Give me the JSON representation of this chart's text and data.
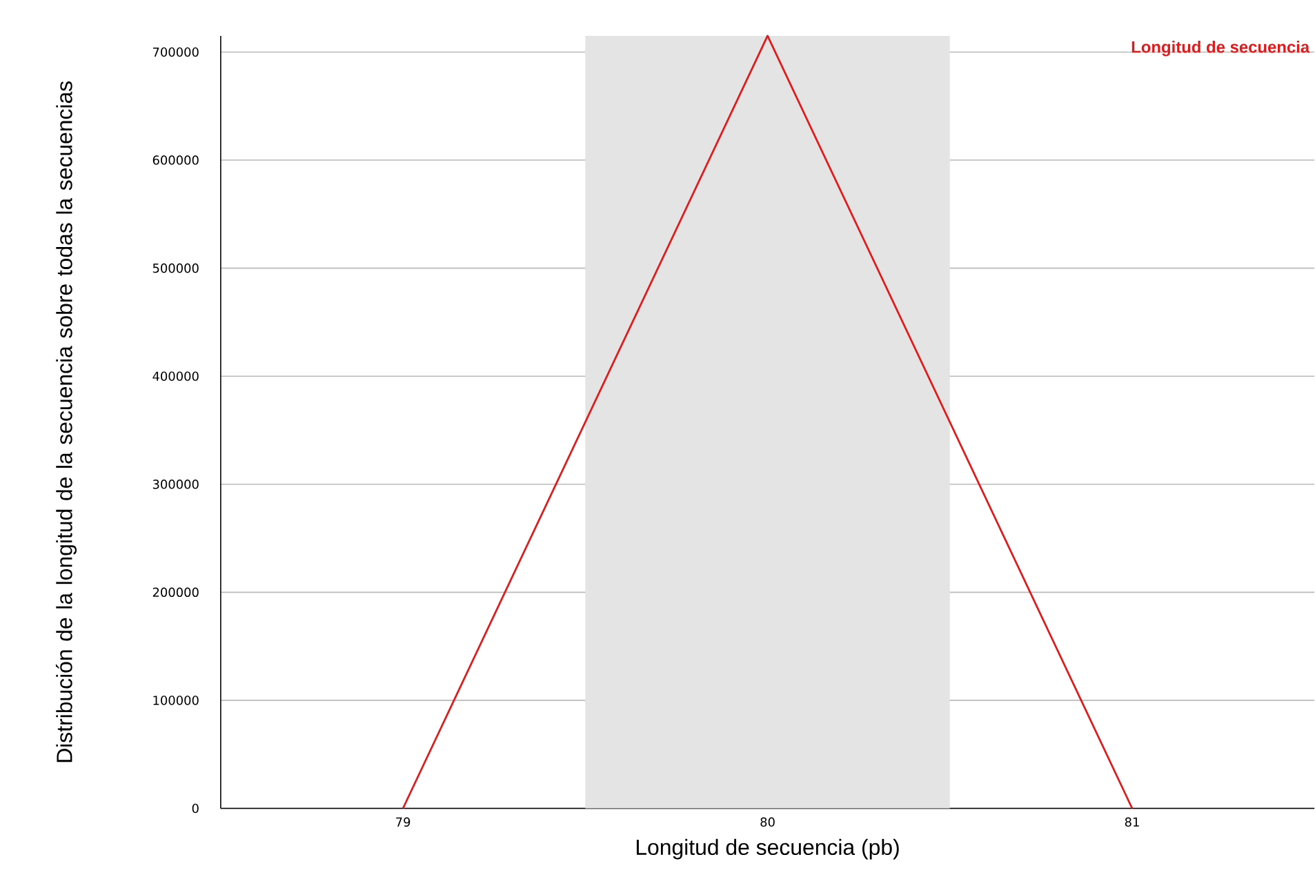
{
  "chart_data": {
    "type": "line",
    "xlabel": "Longitud de secuencia (pb)",
    "ylabel": "Distribución de la longitud de la secuencia sobre todas la secuencias",
    "x": [
      79,
      80,
      81
    ],
    "series": [
      {
        "name": "Longitud de secuencia",
        "color": "#e31a1c",
        "values": [
          0,
          715000,
          0
        ]
      }
    ],
    "xlim": [
      78.5,
      81.5
    ],
    "xticks": [
      79,
      80,
      81
    ],
    "ylim": [
      0,
      715000
    ],
    "yticks": [
      0,
      100000,
      200000,
      300000,
      400000,
      500000,
      600000,
      700000
    ],
    "bands": [
      {
        "axis": "x",
        "from": 79.5,
        "to": 80.5,
        "color": "#e4e4e4"
      }
    ],
    "grid": "y",
    "legend": "top right",
    "marker": "none",
    "line_style": "solid"
  }
}
